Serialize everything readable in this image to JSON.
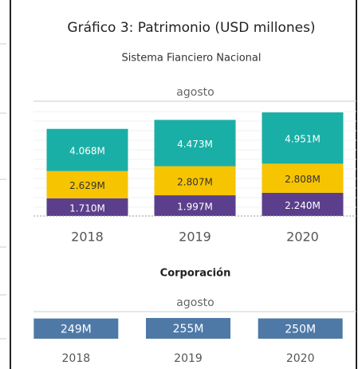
{
  "chart_data": [
    {
      "type": "stacked_bar",
      "title": "Gráfico 3: Patrimonio (USD millones)",
      "subtitle": "Sistema Fianciero Nacional",
      "header": "agosto",
      "categories": [
        "2018",
        "2019",
        "2020"
      ],
      "series": [
        {
          "color": "#5b3f8c",
          "values": [
            1710,
            1997,
            2240
          ],
          "value_labels": [
            "1.710M",
            "1.997M",
            "2.240M"
          ]
        },
        {
          "color": "#f6c400",
          "values": [
            2629,
            2807,
            2808
          ],
          "value_labels": [
            "2.629M",
            "2.807M",
            "2.808M"
          ]
        },
        {
          "color": "#1aafa6",
          "values": [
            4068,
            4473,
            4951
          ],
          "value_labels": [
            "4.068M",
            "4.473M",
            "4.951M"
          ]
        }
      ],
      "ylim": [
        0,
        11000
      ]
    },
    {
      "type": "bar",
      "subtitle": "Corporación",
      "header": "agosto",
      "categories": [
        "2018",
        "2019",
        "2020"
      ],
      "color": "#4e79a7",
      "values": [
        249,
        255,
        250
      ],
      "value_labels": [
        "249M",
        "255M",
        "250M"
      ],
      "ylim": [
        0,
        255
      ]
    }
  ]
}
